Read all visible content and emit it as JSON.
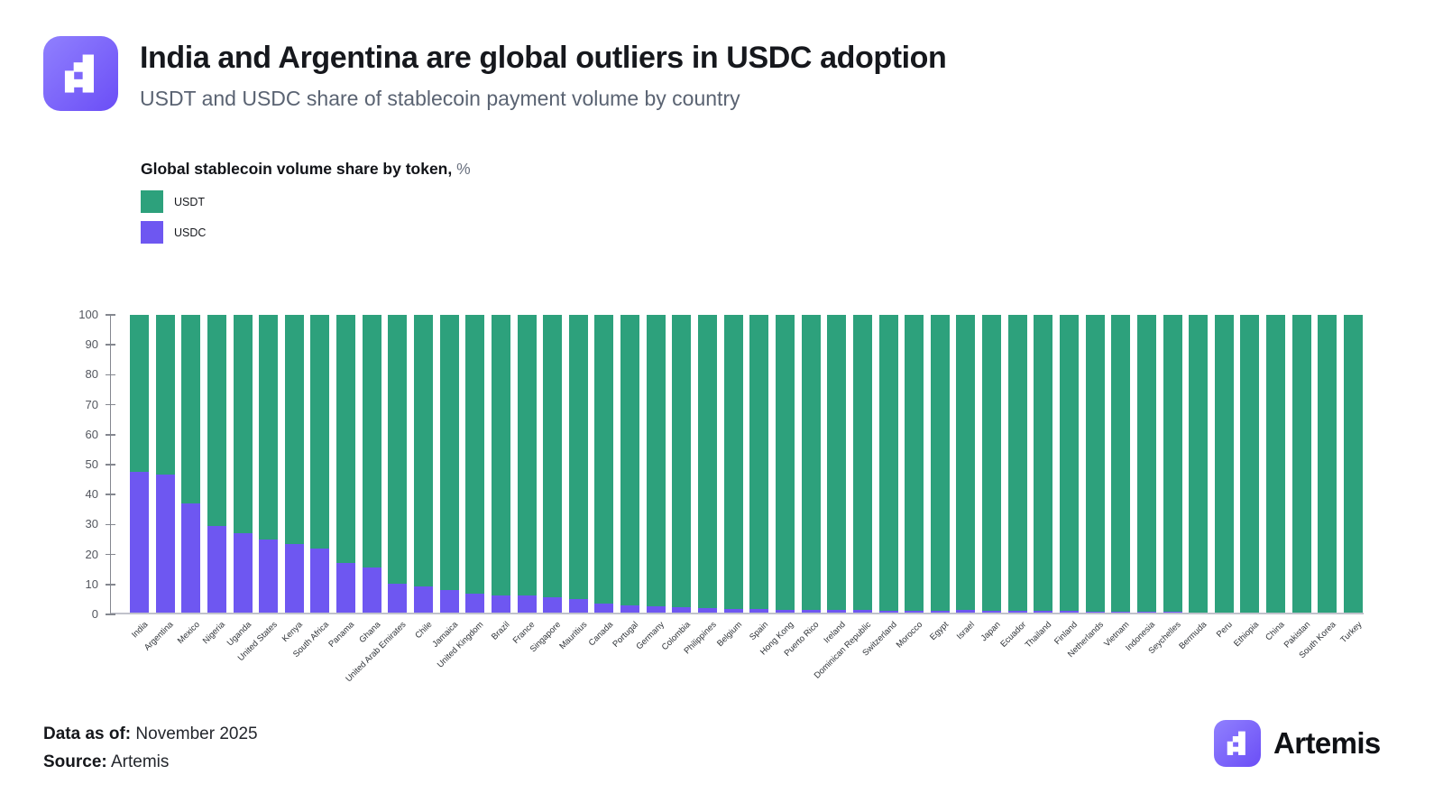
{
  "header": {
    "title": "India and Argentina are global outliers in USDC adoption",
    "subtitle": "USDT and USDC share of stablecoin payment volume by country"
  },
  "legend": {
    "title": "Global stablecoin volume share by token,",
    "title_suffix": "%",
    "items": [
      {
        "label": "USDT",
        "color": "#2da17c"
      },
      {
        "label": "USDC",
        "color": "#6e57f1"
      }
    ]
  },
  "chart_data": {
    "type": "bar",
    "stacked": true,
    "title": "Global stablecoin volume share by token, %",
    "xlabel": "",
    "ylabel": "",
    "ylim": [
      0,
      100
    ],
    "yticks": [
      0,
      10,
      20,
      30,
      40,
      50,
      60,
      70,
      80,
      90,
      100
    ],
    "grid": false,
    "legend_position": "top-left",
    "categories": [
      "India",
      "Argentina",
      "Mexico",
      "Nigeria",
      "Uganda",
      "United States",
      "Kenya",
      "South Africa",
      "Panama",
      "Ghana",
      "United Arab Emirates",
      "Chile",
      "Jamaica",
      "United Kingdom",
      "Brazil",
      "France",
      "Singapore",
      "Mauritius",
      "Canada",
      "Portugal",
      "Germany",
      "Colombia",
      "Philippines",
      "Belgium",
      "Spain",
      "Hong Kong",
      "Puerto Rico",
      "Ireland",
      "Dominican Republic",
      "Switzerland",
      "Morocco",
      "Egypt",
      "Israel",
      "Japan",
      "Ecuador",
      "Thailand",
      "Finland",
      "Netherlands",
      "Vietnam",
      "Indonesia",
      "Seychelles",
      "Bermuda",
      "Peru",
      "Ethiopia",
      "China",
      "Pakistan",
      "South Korea",
      "Turkey"
    ],
    "series": [
      {
        "name": "USDT",
        "color": "#2da17c",
        "values": [
          53,
          54,
          63.5,
          71,
          73.5,
          75.5,
          77,
          78.5,
          83.5,
          85,
          90.5,
          91.2,
          92.6,
          93.8,
          94.3,
          94.4,
          95,
          95.5,
          97.1,
          97.6,
          98,
          98.3,
          98.6,
          98.7,
          98.7,
          99,
          99,
          99.2,
          99.2,
          99.3,
          99.3,
          99.3,
          99.2,
          99.4,
          99.4,
          99.4,
          99.5,
          99.6,
          99.6,
          99.6,
          99.6,
          100,
          100,
          100,
          100,
          100,
          100,
          100
        ]
      },
      {
        "name": "USDC",
        "color": "#6e57f1",
        "values": [
          47,
          46,
          36.5,
          29,
          26.5,
          24.5,
          23,
          21.5,
          16.5,
          15,
          9.5,
          8.8,
          7.4,
          6.2,
          5.7,
          5.6,
          5,
          4.5,
          2.9,
          2.4,
          2,
          1.7,
          1.4,
          1.3,
          1.3,
          1,
          1,
          0.8,
          0.8,
          0.7,
          0.7,
          0.7,
          0.8,
          0.6,
          0.6,
          0.6,
          0.5,
          0.4,
          0.4,
          0.4,
          0.4,
          0,
          0,
          0,
          0,
          0,
          0,
          0
        ]
      }
    ]
  },
  "footer": {
    "data_as_of_label": "Data as of:",
    "data_as_of_value": "November 2025",
    "source_label": "Source:",
    "source_value": "Artemis",
    "brand": "Artemis"
  }
}
